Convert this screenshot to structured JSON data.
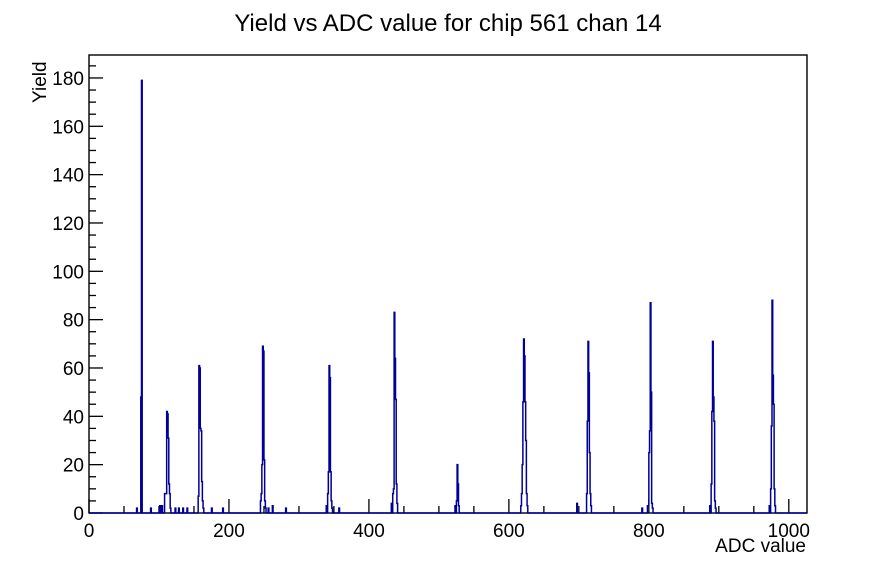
{
  "chart_data": {
    "type": "bar",
    "title": "Yield vs ADC value for chip 561 chan 14",
    "xlabel": "ADC value",
    "ylabel": "Yield",
    "xlim": [
      0,
      1026
    ],
    "ylim": [
      0,
      189.5
    ],
    "x_major_ticks": [
      0,
      200,
      400,
      600,
      800,
      1000
    ],
    "x_minor_step": 50,
    "y_major_ticks": [
      0,
      20,
      40,
      60,
      80,
      100,
      120,
      140,
      160,
      180
    ],
    "y_minor_step": 5,
    "grid": "off",
    "legend": "none",
    "line_color": "#000099",
    "axis_color": "#000000",
    "bin_width_adc": 1,
    "clusters": [
      {
        "start": 68,
        "values": [
          2
        ]
      },
      {
        "start": 74,
        "values": [
          48,
          179
        ]
      },
      {
        "start": 88,
        "values": [
          2
        ]
      },
      {
        "start": 101,
        "values": [
          3
        ]
      },
      {
        "start": 104,
        "values": [
          3
        ]
      },
      {
        "start": 108,
        "values": [
          8,
          8,
          8,
          42,
          41,
          31,
          12,
          8,
          2
        ]
      },
      {
        "start": 123,
        "values": [
          2
        ]
      },
      {
        "start": 128,
        "values": [
          2
        ]
      },
      {
        "start": 134,
        "values": [
          2
        ]
      },
      {
        "start": 140,
        "values": [
          2
        ]
      },
      {
        "start": 156,
        "values": [
          7,
          61,
          60,
          35,
          34,
          13,
          5,
          2
        ]
      },
      {
        "start": 175,
        "values": [
          2
        ]
      },
      {
        "start": 191,
        "values": [
          2
        ]
      },
      {
        "start": 245,
        "values": [
          5,
          8,
          20,
          69,
          67,
          22,
          5,
          2
        ]
      },
      {
        "start": 256,
        "values": [
          2
        ]
      },
      {
        "start": 262,
        "values": [
          3
        ]
      },
      {
        "start": 281,
        "values": [
          2
        ]
      },
      {
        "start": 339,
        "values": [
          3,
          0,
          8,
          17,
          61,
          56,
          17,
          5,
          2
        ]
      },
      {
        "start": 357,
        "values": [
          2
        ]
      },
      {
        "start": 432,
        "values": [
          4,
          0,
          8,
          10,
          83,
          64,
          47,
          12,
          4
        ]
      },
      {
        "start": 523,
        "values": [
          3,
          0,
          5,
          20,
          12,
          3
        ]
      },
      {
        "start": 617,
        "values": [
          3,
          8,
          20,
          46,
          72,
          65,
          46,
          30,
          8,
          3
        ]
      },
      {
        "start": 697,
        "values": [
          4
        ]
      },
      {
        "start": 711,
        "values": [
          8,
          38,
          71,
          58,
          25,
          8,
          3
        ]
      },
      {
        "start": 790,
        "values": [
          2
        ]
      },
      {
        "start": 798,
        "values": [
          3,
          3,
          25,
          34,
          87,
          50,
          4,
          2
        ]
      },
      {
        "start": 887,
        "values": [
          3,
          0,
          12,
          42,
          71,
          48,
          38,
          5,
          2
        ]
      },
      {
        "start": 972,
        "values": [
          3,
          0,
          10,
          36,
          88,
          57,
          45,
          10,
          3
        ]
      }
    ]
  }
}
